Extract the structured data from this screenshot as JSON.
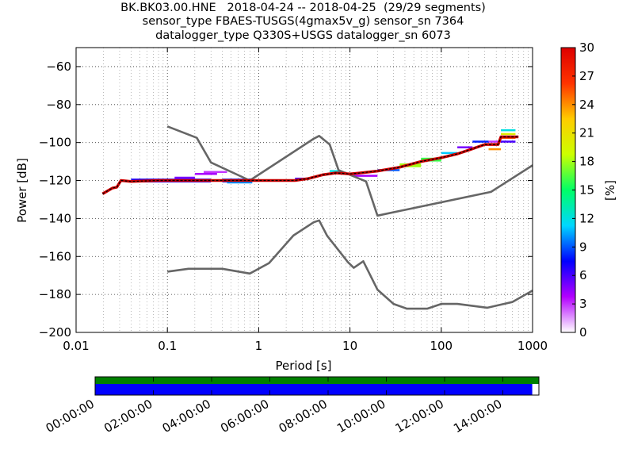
{
  "title_lines": [
    "BK.BK03.00.HNE   2018-04-24 -- 2018-04-25  (29/29 segments)",
    "sensor_type FBAES-TUSGS(4gmax5v_g) sensor_sn 7364",
    "datalogger_type Q330S+USGS datalogger_sn 6073"
  ],
  "chart_data": {
    "type": "heatmap",
    "xlabel": "Period [s]",
    "ylabel": "Power [dB]",
    "xscale": "log",
    "xlim": [
      0.01,
      1000
    ],
    "ylim": [
      -200,
      -50
    ],
    "xticks": [
      0.01,
      0.1,
      1,
      10,
      100,
      1000
    ],
    "xtick_labels": [
      "0.01",
      "0.1",
      "1",
      "10",
      "100",
      "1000"
    ],
    "yticks": [
      -200,
      -180,
      -160,
      -140,
      -120,
      -100,
      -80,
      -60
    ],
    "ytick_labels": [
      "−200",
      "−180",
      "−160",
      "−140",
      "−120",
      "−100",
      "−80",
      "−60"
    ],
    "grid": true,
    "colorbar": {
      "label": "[%]",
      "range": [
        0,
        30
      ],
      "ticks": [
        0,
        3,
        6,
        9,
        12,
        15,
        18,
        21,
        24,
        27,
        30
      ],
      "colormap": [
        "#ffffff",
        "#b300ff",
        "#0000ff",
        "#00d7ff",
        "#00ff66",
        "#ccff00",
        "#ffcc00",
        "#ff3300",
        "#dd0000"
      ]
    },
    "series": [
      {
        "line_color": "#666666",
        "points": [
          [
            0.1,
            -91.5
          ],
          [
            0.21,
            -97.5
          ],
          [
            0.3,
            -110.5
          ],
          [
            0.8,
            -120
          ],
          [
            4,
            -98
          ],
          [
            4.6,
            -96.5
          ],
          [
            6,
            -101
          ],
          [
            7.5,
            -114.5
          ],
          [
            15,
            -120.5
          ],
          [
            20,
            -138.5
          ],
          [
            350,
            -126
          ],
          [
            1000,
            -112
          ]
        ]
      },
      {
        "line_color": "#666666",
        "points": [
          [
            0.1,
            -168
          ],
          [
            0.17,
            -166.5
          ],
          [
            0.4,
            -166.5
          ],
          [
            0.8,
            -169
          ],
          [
            1.3,
            -163.5
          ],
          [
            2.4,
            -149
          ],
          [
            4,
            -142
          ],
          [
            4.6,
            -141
          ],
          [
            5.6,
            -149
          ],
          [
            9.5,
            -163
          ],
          [
            11,
            -166
          ],
          [
            14,
            -162.5
          ],
          [
            20,
            -177.5
          ],
          [
            30,
            -185
          ],
          [
            42,
            -187.5
          ],
          [
            70,
            -187.5
          ],
          [
            100,
            -185
          ],
          [
            150,
            -185
          ],
          [
            320,
            -187
          ],
          [
            600,
            -184
          ],
          [
            1000,
            -178
          ]
        ]
      },
      {
        "mode_color": "#000000",
        "points": [
          [
            0.0195,
            -127
          ],
          [
            0.025,
            -124
          ],
          [
            0.028,
            -123.5
          ],
          [
            0.031,
            -120
          ],
          [
            0.04,
            -120.5
          ],
          [
            0.08,
            -120
          ],
          [
            0.2,
            -120
          ],
          [
            1,
            -120
          ],
          [
            2.5,
            -120
          ],
          [
            3.5,
            -119
          ],
          [
            5,
            -117
          ],
          [
            7,
            -116
          ],
          [
            10,
            -116.5
          ],
          [
            13,
            -116
          ],
          [
            20,
            -115
          ],
          [
            35,
            -113
          ],
          [
            60,
            -110
          ],
          [
            100,
            -108
          ],
          [
            150,
            -106
          ],
          [
            200,
            -104
          ],
          [
            300,
            -101
          ],
          [
            420,
            -101
          ],
          [
            450,
            -97
          ],
          [
            700,
            -97
          ]
        ]
      }
    ],
    "heat_bands": [
      {
        "x": [
          0.04,
          0.3
        ],
        "y": [
          -119,
          -121
        ],
        "color_value": 7
      },
      {
        "x": [
          0.12,
          0.2
        ],
        "y": [
          -118,
          -118.5
        ],
        "color_value": 5
      },
      {
        "x": [
          0.2,
          0.35
        ],
        "y": [
          -116,
          -117
        ],
        "color_value": 4
      },
      {
        "x": [
          0.25,
          0.45
        ],
        "y": [
          -115,
          -115.5
        ],
        "color_value": 3
      },
      {
        "x": [
          0.4,
          0.85
        ],
        "y": [
          -119,
          -121
        ],
        "color_value": 8
      },
      {
        "x": [
          0.45,
          0.85
        ],
        "y": [
          -120.5,
          -121.5
        ],
        "color_value": 10
      },
      {
        "x": [
          2.5,
          3.5
        ],
        "y": [
          -118.5,
          -119.5
        ],
        "color_value": 6
      },
      {
        "x": [
          6,
          8
        ],
        "y": [
          -114.5,
          -115.5
        ],
        "color_value": 12
      },
      {
        "x": [
          11,
          20
        ],
        "y": [
          -117,
          -118
        ],
        "color_value": 4
      },
      {
        "x": [
          20,
          35
        ],
        "y": [
          -114,
          -115
        ],
        "color_value": 9
      },
      {
        "x": [
          35,
          60
        ],
        "y": [
          -111,
          -113
        ],
        "color_value": 18
      },
      {
        "x": [
          60,
          100
        ],
        "y": [
          -108,
          -110
        ],
        "color_value": 16
      },
      {
        "x": [
          100,
          150
        ],
        "y": [
          -105,
          -106
        ],
        "color_value": 11
      },
      {
        "x": [
          150,
          220
        ],
        "y": [
          -102,
          -103
        ],
        "color_value": 5
      },
      {
        "x": [
          220,
          330
        ],
        "y": [
          -99,
          -100
        ],
        "color_value": 8
      },
      {
        "x": [
          330,
          450
        ],
        "y": [
          -99,
          -100
        ],
        "color_value": 3
      },
      {
        "x": [
          330,
          450
        ],
        "y": [
          -103,
          -104
        ],
        "color_value": 24
      },
      {
        "x": [
          450,
          650
        ],
        "y": [
          -93,
          -94
        ],
        "color_value": 12
      },
      {
        "x": [
          450,
          650
        ],
        "y": [
          -95,
          -96
        ],
        "color_value": 20
      },
      {
        "x": [
          450,
          650
        ],
        "y": [
          -97,
          -98
        ],
        "color_value": 25
      },
      {
        "x": [
          450,
          650
        ],
        "y": [
          -99,
          -100
        ],
        "color_value": 6
      }
    ]
  },
  "timeline": {
    "labels": [
      "00:00:00",
      "02:00:00",
      "04:00:00",
      "06:00:00",
      "08:00:00",
      "10:00:00",
      "12:00:00",
      "14:00:00"
    ],
    "coverage_fraction": 0.985,
    "top_color": "#008000",
    "bottom_color": "#0000ff"
  }
}
